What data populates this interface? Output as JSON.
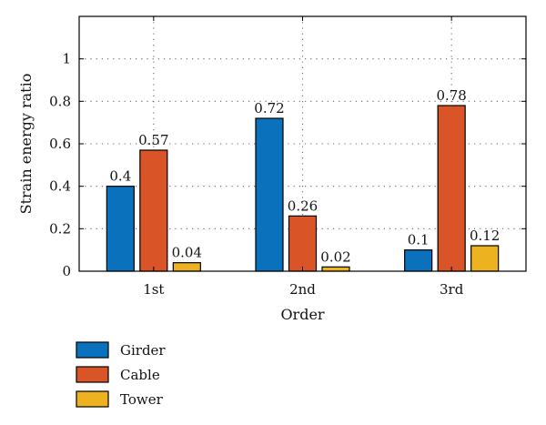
{
  "chart_data": {
    "type": "bar",
    "categories": [
      "1st",
      "2nd",
      "3rd"
    ],
    "series": [
      {
        "name": "Girder",
        "values": [
          0.4,
          0.72,
          0.1
        ],
        "color": "#0a71bc"
      },
      {
        "name": "Cable",
        "values": [
          0.57,
          0.26,
          0.78
        ],
        "color": "#d95426"
      },
      {
        "name": "Tower",
        "values": [
          0.04,
          0.02,
          0.12
        ],
        "color": "#edb220"
      }
    ],
    "data_labels": [
      [
        "0.4",
        "0.57",
        "0.04"
      ],
      [
        "0.72",
        "0.26",
        "0.02"
      ],
      [
        "0.1",
        "0.78",
        "0.12"
      ]
    ],
    "yticks": [
      0,
      0.2,
      0.4,
      0.6,
      0.8,
      1
    ],
    "ytick_labels": [
      "0",
      "0.2",
      "0.4",
      "0.6",
      "0.8",
      "1"
    ],
    "ylim": [
      0,
      1.2
    ],
    "xlabel": "Order",
    "ylabel": "Strain energy ratio",
    "grid": true,
    "legend_position": "bottom-left"
  }
}
